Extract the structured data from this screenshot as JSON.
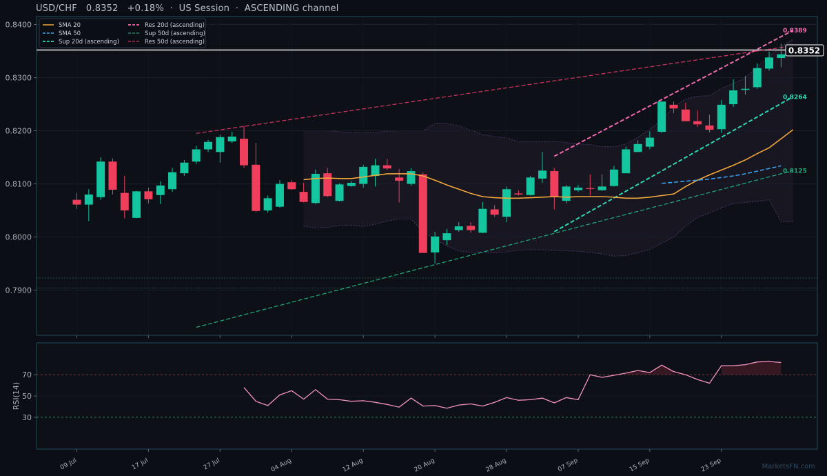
{
  "header": {
    "title": "USD/CHF   0.8352   +0.18%  ·  US Session  ·  ASCENDING channel"
  },
  "watermark": "MarketsFN.com",
  "price_tag": "0.8352",
  "colors": {
    "up": "#14c6a0",
    "down": "#ef3f5c",
    "sma20": "#f2a73b",
    "sma50": "#3aa0ee",
    "sup20": "#2fd6b4",
    "sup50": "#1fa67a",
    "res20": "#f26bb0",
    "res50": "#c93460",
    "rsi": "#f593bf",
    "background": "#0b0e14",
    "panel_border": "#1f4a5e"
  },
  "chart_data": [
    {
      "type": "candlestick",
      "title": "USD/CHF",
      "ylim": [
        0.7815,
        0.8415
      ],
      "y_ticks": [
        "0.7900",
        "0.8000",
        "0.8100",
        "0.8200",
        "0.8300",
        "0.8400"
      ],
      "x_tick_labels": [
        "09 Jul",
        "17 Jul",
        "27 Jul",
        "04 Aug",
        "12 Aug",
        "20 Aug",
        "28 Aug",
        "07 Sep",
        "15 Sep",
        "23 Sep"
      ],
      "x_tick_index": [
        0,
        6,
        12,
        18,
        24,
        30,
        36,
        42,
        48,
        54
      ],
      "legend": {
        "position": "top-left",
        "entries": [
          "SMA 20",
          "SMA 50",
          "Sup 20d (ascending)",
          "Res 20d (ascending)",
          "Sup 50d (ascending)",
          "Res 50d (ascending)"
        ]
      },
      "candles": [
        {
          "o": 0.807,
          "h": 0.8083,
          "l": 0.8053,
          "c": 0.8061
        },
        {
          "o": 0.8061,
          "h": 0.809,
          "l": 0.803,
          "c": 0.808
        },
        {
          "o": 0.8075,
          "h": 0.815,
          "l": 0.807,
          "c": 0.8142
        },
        {
          "o": 0.8142,
          "h": 0.8148,
          "l": 0.808,
          "c": 0.8089
        },
        {
          "o": 0.8083,
          "h": 0.8115,
          "l": 0.8035,
          "c": 0.805
        },
        {
          "o": 0.8036,
          "h": 0.8087,
          "l": 0.8035,
          "c": 0.8086
        },
        {
          "o": 0.8086,
          "h": 0.8093,
          "l": 0.8063,
          "c": 0.8071
        },
        {
          "o": 0.8079,
          "h": 0.8105,
          "l": 0.8062,
          "c": 0.8097
        },
        {
          "o": 0.809,
          "h": 0.813,
          "l": 0.8085,
          "c": 0.8122
        },
        {
          "o": 0.812,
          "h": 0.8145,
          "l": 0.8115,
          "c": 0.814
        },
        {
          "o": 0.8142,
          "h": 0.8172,
          "l": 0.8137,
          "c": 0.8165
        },
        {
          "o": 0.8165,
          "h": 0.8183,
          "l": 0.816,
          "c": 0.8179
        },
        {
          "o": 0.816,
          "h": 0.8193,
          "l": 0.814,
          "c": 0.8188
        },
        {
          "o": 0.818,
          "h": 0.8198,
          "l": 0.8177,
          "c": 0.8189
        },
        {
          "o": 0.8185,
          "h": 0.8209,
          "l": 0.813,
          "c": 0.8135
        },
        {
          "o": 0.8136,
          "h": 0.8177,
          "l": 0.8047,
          "c": 0.8049
        },
        {
          "o": 0.805,
          "h": 0.8078,
          "l": 0.8046,
          "c": 0.8073
        },
        {
          "o": 0.8057,
          "h": 0.8107,
          "l": 0.8055,
          "c": 0.81
        },
        {
          "o": 0.8103,
          "h": 0.8107,
          "l": 0.8089,
          "c": 0.809
        },
        {
          "o": 0.8085,
          "h": 0.8102,
          "l": 0.8065,
          "c": 0.8066
        },
        {
          "o": 0.8064,
          "h": 0.8127,
          "l": 0.8062,
          "c": 0.8119
        },
        {
          "o": 0.812,
          "h": 0.813,
          "l": 0.8075,
          "c": 0.8077
        },
        {
          "o": 0.8068,
          "h": 0.8101,
          "l": 0.8067,
          "c": 0.8099
        },
        {
          "o": 0.8096,
          "h": 0.8105,
          "l": 0.8095,
          "c": 0.8102
        },
        {
          "o": 0.81,
          "h": 0.8136,
          "l": 0.8093,
          "c": 0.8132
        },
        {
          "o": 0.8115,
          "h": 0.8147,
          "l": 0.8095,
          "c": 0.8135
        },
        {
          "o": 0.8135,
          "h": 0.8147,
          "l": 0.8126,
          "c": 0.8129
        },
        {
          "o": 0.8112,
          "h": 0.8128,
          "l": 0.8065,
          "c": 0.8106
        },
        {
          "o": 0.81,
          "h": 0.813,
          "l": 0.8097,
          "c": 0.8124
        },
        {
          "o": 0.8118,
          "h": 0.8122,
          "l": 0.797,
          "c": 0.797
        },
        {
          "o": 0.7971,
          "h": 0.801,
          "l": 0.795,
          "c": 0.8001
        },
        {
          "o": 0.7994,
          "h": 0.8015,
          "l": 0.7985,
          "c": 0.8007
        },
        {
          "o": 0.8013,
          "h": 0.8028,
          "l": 0.801,
          "c": 0.802
        },
        {
          "o": 0.8021,
          "h": 0.8028,
          "l": 0.8008,
          "c": 0.8013
        },
        {
          "o": 0.8008,
          "h": 0.8066,
          "l": 0.8007,
          "c": 0.8053
        },
        {
          "o": 0.8052,
          "h": 0.806,
          "l": 0.8038,
          "c": 0.8042
        },
        {
          "o": 0.8038,
          "h": 0.8095,
          "l": 0.8028,
          "c": 0.809
        },
        {
          "o": 0.8082,
          "h": 0.8088,
          "l": 0.8078,
          "c": 0.808
        },
        {
          "o": 0.8079,
          "h": 0.8115,
          "l": 0.8078,
          "c": 0.8112
        },
        {
          "o": 0.811,
          "h": 0.816,
          "l": 0.8102,
          "c": 0.8125
        },
        {
          "o": 0.8124,
          "h": 0.813,
          "l": 0.8052,
          "c": 0.8075
        },
        {
          "o": 0.8068,
          "h": 0.8098,
          "l": 0.8063,
          "c": 0.8095
        },
        {
          "o": 0.8088,
          "h": 0.8098,
          "l": 0.8085,
          "c": 0.8093
        },
        {
          "o": 0.8092,
          "h": 0.8118,
          "l": 0.8078,
          "c": 0.8091
        },
        {
          "o": 0.8088,
          "h": 0.8118,
          "l": 0.8087,
          "c": 0.8095
        },
        {
          "o": 0.8096,
          "h": 0.8134,
          "l": 0.8095,
          "c": 0.8127
        },
        {
          "o": 0.812,
          "h": 0.817,
          "l": 0.812,
          "c": 0.8165
        },
        {
          "o": 0.816,
          "h": 0.8182,
          "l": 0.816,
          "c": 0.8175
        },
        {
          "o": 0.817,
          "h": 0.8199,
          "l": 0.8165,
          "c": 0.8187
        },
        {
          "o": 0.8198,
          "h": 0.8255,
          "l": 0.8196,
          "c": 0.8255
        },
        {
          "o": 0.8249,
          "h": 0.8255,
          "l": 0.8233,
          "c": 0.8242
        },
        {
          "o": 0.824,
          "h": 0.8253,
          "l": 0.8218,
          "c": 0.8218
        },
        {
          "o": 0.8218,
          "h": 0.8238,
          "l": 0.8207,
          "c": 0.8212
        },
        {
          "o": 0.821,
          "h": 0.823,
          "l": 0.8197,
          "c": 0.8202
        },
        {
          "o": 0.8203,
          "h": 0.8258,
          "l": 0.8196,
          "c": 0.8249
        },
        {
          "o": 0.825,
          "h": 0.8297,
          "l": 0.8245,
          "c": 0.8276
        },
        {
          "o": 0.8277,
          "h": 0.8303,
          "l": 0.8268,
          "c": 0.8279
        },
        {
          "o": 0.8282,
          "h": 0.8327,
          "l": 0.8279,
          "c": 0.8318
        },
        {
          "o": 0.8317,
          "h": 0.8349,
          "l": 0.8313,
          "c": 0.8338
        },
        {
          "o": 0.8337,
          "h": 0.8364,
          "l": 0.832,
          "c": 0.8344
        }
      ],
      "sma20": {
        "start_index": 19,
        "values": [
          0.8108,
          0.811,
          0.8111,
          0.811,
          0.811,
          0.8113,
          0.8116,
          0.8119,
          0.8119,
          0.8119,
          0.8115,
          0.8107,
          0.8098,
          0.809,
          0.8082,
          0.8076,
          0.8074,
          0.8073,
          0.8073,
          0.8074,
          0.8075,
          0.8076,
          0.8075,
          0.8076,
          0.8076,
          0.8076,
          0.8075,
          0.8073,
          0.8073,
          0.8075,
          0.8078,
          0.8081,
          0.8095,
          0.8107,
          0.8117,
          0.8126,
          0.8135,
          0.8145,
          0.8157,
          0.8168,
          0.8185,
          0.8202
        ]
      },
      "sma50": {
        "start_index": 49,
        "values": [
          0.8101,
          0.8103,
          0.8105,
          0.8107,
          0.8109,
          0.8112,
          0.8115,
          0.8119,
          0.8124,
          0.8129,
          0.8134
        ]
      },
      "bollinger": {
        "start_index": 19,
        "upper": [
          0.82,
          0.82,
          0.82,
          0.8198,
          0.8197,
          0.8197,
          0.8197,
          0.8199,
          0.82,
          0.82,
          0.82,
          0.8214,
          0.8214,
          0.8209,
          0.8201,
          0.8193,
          0.8189,
          0.8187,
          0.818,
          0.818,
          0.818,
          0.818,
          0.8178,
          0.8175,
          0.8174,
          0.817,
          0.817,
          0.8175,
          0.8188,
          0.8203,
          0.822,
          0.8245,
          0.826,
          0.8265,
          0.8266,
          0.828,
          0.8289,
          0.83,
          0.832,
          0.834,
          0.8358,
          0.8372
        ],
        "lower": [
          0.802,
          0.8017,
          0.8018,
          0.8022,
          0.8022,
          0.802,
          0.8024,
          0.803,
          0.8034,
          0.8034,
          0.801,
          0.7996,
          0.7983,
          0.7974,
          0.7971,
          0.7971,
          0.797,
          0.7972,
          0.7975,
          0.7976,
          0.7976,
          0.7975,
          0.7974,
          0.7973,
          0.7971,
          0.7968,
          0.7964,
          0.7965,
          0.797,
          0.7977,
          0.7988,
          0.8,
          0.802,
          0.8037,
          0.8045,
          0.8055,
          0.8063,
          0.8065,
          0.8067,
          0.807,
          0.8029,
          0.8029
        ]
      },
      "trend_lines": [
        {
          "name": "Res 20d (ascending)",
          "from_index": 40,
          "from": 0.8152,
          "to_index": 60,
          "to": 0.8389
        },
        {
          "name": "Sup 20d (ascending)",
          "from_index": 40,
          "from": 0.801,
          "to_index": 60,
          "to": 0.8264
        },
        {
          "name": "Res 50d (ascending)",
          "from_index": 10,
          "from": 0.8195,
          "to_index": 60,
          "to": 0.836
        },
        {
          "name": "Sup 50d (ascending)",
          "from_index": 10,
          "from": 0.783,
          "to_index": 60,
          "to": 0.8125
        }
      ],
      "level_labels": [
        {
          "text": "0.8389",
          "value": 0.8389,
          "color": "#f26bb0"
        },
        {
          "text": "0.8264",
          "value": 0.8264,
          "color": "#2fd6b4"
        },
        {
          "text": "0.8125",
          "value": 0.8125,
          "color": "#1fa67a"
        }
      ],
      "horizontal_levels": [
        0.8352,
        0.7923,
        0.7904
      ]
    },
    {
      "type": "line",
      "ylabel": "RSI(14)",
      "ylim": [
        0,
        100
      ],
      "y_ticks": [
        "30",
        "50",
        "70"
      ],
      "thresholds": [
        30,
        70
      ],
      "start_index": 14,
      "values": [
        58,
        45,
        41,
        51,
        55,
        47,
        56,
        47,
        46.5,
        45,
        45.5,
        44,
        42,
        39.5,
        48,
        40.5,
        41,
        38.5,
        41.5,
        42.5,
        40.5,
        44,
        48.5,
        46,
        46.5,
        48,
        43.5,
        48.5,
        46.5,
        70,
        67.5,
        69.5,
        71.5,
        74,
        72,
        79,
        73,
        70,
        65.5,
        62,
        78.5,
        78.5,
        79.5,
        82,
        82.5,
        81.5
      ]
    }
  ]
}
